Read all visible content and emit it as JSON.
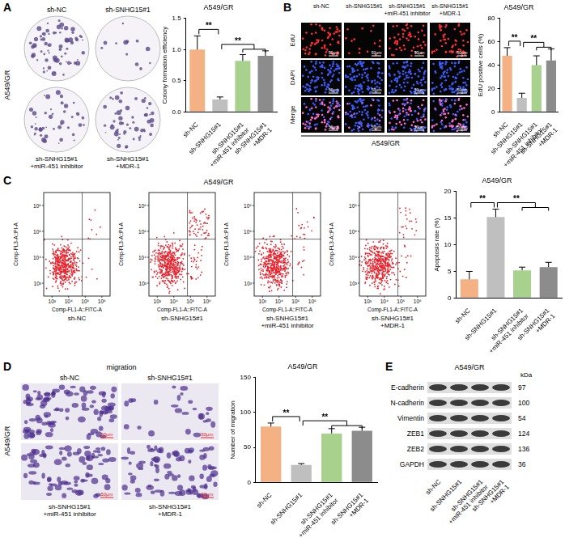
{
  "chart_data": [
    {
      "type": "bar",
      "title": "A549/GR",
      "y_label": "Colony formation efficiency",
      "categories": [
        "sh-NC",
        "sh-SNHG15#1",
        "sh-SNHG15#1 +miR-451 inhibitor",
        "sh-SNHG15#1 +MDR-1"
      ],
      "values": [
        1.0,
        0.2,
        0.82,
        0.9
      ],
      "errors": [
        0.22,
        0.04,
        0.1,
        0.08
      ],
      "colors": [
        "#f4b183",
        "#bfbfbf",
        "#a9d18e",
        "#8c8c8c"
      ],
      "ylim": [
        0,
        1.5
      ],
      "yticks": [
        {
          "value": 0,
          "label": "0.0"
        },
        {
          "value": 0.5,
          "label": "0.5"
        },
        {
          "value": 1,
          "label": "1.0"
        },
        {
          "value": 1.5,
          "label": "1.5"
        }
      ],
      "grid": false,
      "annotations": [
        {
          "text": "**",
          "between": [
            "sh-NC",
            "sh-SNHG15#1"
          ]
        },
        {
          "text": "**",
          "between": [
            "sh-SNHG15#1",
            "sh-SNHG15#1 +miR-451 inhibitor",
            "sh-SNHG15#1 +MDR-1"
          ]
        }
      ]
    },
    {
      "type": "bar",
      "title": "A549/GR",
      "y_label": "EdU positive cells (%)",
      "categories": [
        "sh-NC",
        "sh-SNHG15#1",
        "sh-SNHG15#1 +miR-451 inhibitor",
        "sh-SNHG15#1 +MDR-1"
      ],
      "values": [
        48,
        12,
        40,
        44
      ],
      "errors": [
        7,
        4,
        8,
        10
      ],
      "colors": [
        "#f4b183",
        "#bfbfbf",
        "#a9d18e",
        "#8c8c8c"
      ],
      "ylim": [
        0,
        80
      ],
      "yticks": [
        0,
        20,
        40,
        60,
        80
      ],
      "grid": false,
      "annotations": [
        {
          "text": "**",
          "between": [
            "sh-NC",
            "sh-SNHG15#1"
          ]
        },
        {
          "text": "**",
          "between": [
            "sh-SNHG15#1",
            "sh-SNHG15#1 +miR-451 inhibitor",
            "sh-SNHG15#1 +MDR-1"
          ]
        }
      ]
    },
    {
      "type": "bar",
      "title": "A549/GR",
      "y_label": "Apoptosis rate (%)",
      "categories": [
        "sh-NC",
        "sh-SNHG15#1",
        "sh-SNHG15#1 +miR-451 inhibitor",
        "sh-SNHG15#1 +MDR-1"
      ],
      "values": [
        3.5,
        15.2,
        5.2,
        5.8
      ],
      "errors": [
        1.5,
        1.5,
        0.6,
        0.9
      ],
      "colors": [
        "#f4b183",
        "#bfbfbf",
        "#a9d18e",
        "#8c8c8c"
      ],
      "ylim": [
        0,
        20
      ],
      "yticks": [
        0,
        5,
        10,
        15,
        20
      ],
      "grid": false,
      "annotations": [
        {
          "text": "**",
          "between": [
            "sh-NC",
            "sh-SNHG15#1"
          ]
        },
        {
          "text": "**",
          "between": [
            "sh-SNHG15#1",
            "sh-SNHG15#1 +miR-451 inhibitor",
            "sh-SNHG15#1 +MDR-1"
          ]
        }
      ]
    },
    {
      "type": "bar",
      "title": "A549/GR",
      "y_label": "Number of migration",
      "categories": [
        "sh-NC",
        "sh-SNHG15#1",
        "sh-SNHG15#1 +miR-451 inhibitor",
        "sh-SNHG15#1 +MDR-1"
      ],
      "values": [
        80,
        25,
        70,
        74
      ],
      "errors": [
        5,
        2,
        7,
        5
      ],
      "colors": [
        "#f4b183",
        "#bfbfbf",
        "#a9d18e",
        "#8c8c8c"
      ],
      "ylim": [
        0,
        150
      ],
      "yticks": [
        0,
        50,
        100,
        150
      ],
      "grid": false,
      "annotations": [
        {
          "text": "**",
          "between": [
            "sh-NC",
            "sh-SNHG15#1"
          ]
        },
        {
          "text": "**",
          "between": [
            "sh-SNHG15#1",
            "sh-SNHG15#1 +miR-451 inhibitor",
            "sh-SNHG15#1 +MDR-1"
          ]
        }
      ]
    }
  ],
  "figure": {
    "A": {
      "label": "A",
      "side_label": "A549/GR",
      "images": [
        "sh-NC",
        "sh-SNHG15#1",
        "sh-SNHG15#1 +miR-451 inhibitor",
        "sh-SNHG15#1 +MDR-1"
      ]
    },
    "B": {
      "label": "B",
      "columns": [
        "sh-NC",
        "sh-SNHG15#1",
        "sh-SNHG15#1 +miR-451 inhibitor",
        "sh-SNHG15#1 +MDR-1"
      ],
      "rows": [
        "EdU",
        "DAPI",
        "Merge"
      ],
      "scale_bar": "50μm",
      "bottom_label": "A549/GR"
    },
    "C": {
      "label": "C",
      "title": "A549/GR",
      "plots": [
        "sh-NC",
        "sh-SNHG15#1",
        "sh-SNHG15#1 +miR-451 inhibitor",
        "sh-SNHG15#1 +MDR-1"
      ],
      "x_axis": "Comp-FL1-A::FITC-A",
      "y_axis": "Comp-FL3-A::PI-A",
      "x_ticks": [
        "10³",
        "10⁴",
        "10⁵",
        "10⁶"
      ],
      "y_ticks": [
        "10³",
        "10⁴",
        "10⁵",
        "10⁶"
      ]
    },
    "D": {
      "label": "D",
      "title": "migration",
      "side_label": "A549/GR",
      "images": [
        "sh-NC",
        "sh-SNHG15#1",
        "sh-SNHG15#1 +miR-451 inhibitor",
        "sh-SNHG15#1 +MDR-1"
      ],
      "scale_bar": "50μm"
    },
    "E": {
      "label": "E",
      "title": "A549/GR",
      "unit": "kDa",
      "proteins": [
        {
          "name": "E-cadherin",
          "kDa": 97
        },
        {
          "name": "N-cadherin",
          "kDa": 100
        },
        {
          "name": "Vimentin",
          "kDa": 54
        },
        {
          "name": "ZEB1",
          "kDa": 124
        },
        {
          "name": "ZEB2",
          "kDa": 136
        },
        {
          "name": "GAPDH",
          "kDa": 36
        }
      ],
      "lanes": [
        "sh-NC",
        "sh-SNHG15#1",
        "sh-SNHG15#1 +miR-451 inhibitor",
        "sh-SNHG15#1 +MDR-1"
      ]
    }
  }
}
